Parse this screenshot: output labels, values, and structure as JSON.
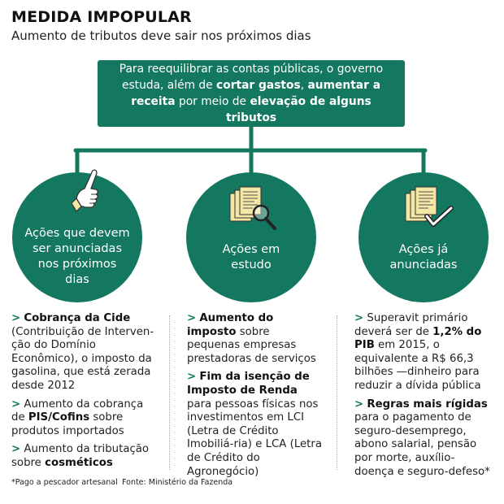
{
  "header": {
    "title": "MEDIDA IMPOPULAR",
    "subtitle": "Aumento de tributos deve sair nos próximos dias"
  },
  "intro": {
    "part1": "Para reequilibrar as contas públicas, o governo estuda, além de ",
    "bold1": "cortar gastos",
    "part2": ", ",
    "bold2": "aumentar a receita",
    "part3": " por meio de ",
    "bold3": "elevação de alguns tributos"
  },
  "circles": [
    {
      "label": "Ações que devem ser anunciadas nos próximos dias",
      "icon": "pointing-hand-icon"
    },
    {
      "label": "Ações em estudo",
      "icon": "documents-magnifier-icon"
    },
    {
      "label": "Ações já anunciadas",
      "icon": "documents-checkmark-icon"
    }
  ],
  "columns": {
    "left": [
      {
        "bold": "Cobrança da Cide",
        "text": " (Contribuição de Interven-ção do Domínio Econômico), o imposto da gasolina, que está zerada desde 2012"
      },
      {
        "pre": "Aumento da cobrança de ",
        "bold": "PIS/Cofins",
        "text": " sobre produtos importados"
      },
      {
        "pre": "Aumento da tributação sobre ",
        "bold": "cosméticos",
        "text": ""
      }
    ],
    "middle": [
      {
        "bold": "Aumento do imposto",
        "text": " sobre pequenas empresas prestadoras de serviços"
      },
      {
        "bold": "Fim da isenção de Imposto de Renda",
        "text": " para pessoas físicas nos investimentos em LCI (Letra de Crédito Imobiliá-ria) e LCA (Letra de Crédito do Agronegócio)"
      }
    ],
    "right": [
      {
        "pre": "Superavit primário deverá ser de ",
        "bold": "1,2% do PIB",
        "text": " em 2015, o equivalente a R$ 66,3 bilhões —dinheiro para reduzir a dívida pública"
      },
      {
        "bold": "Regras mais rígidas",
        "text": " para o pagamento de seguro-desemprego, abono salarial, pensão por morte, auxílio-doença e seguro-defeso*"
      }
    ]
  },
  "footer": {
    "note": "*Pago a pescador artesanal",
    "source": "Fonte: Ministério da Fazenda"
  },
  "colors": {
    "accent": "#14775f",
    "paper": "#f3e7a6"
  }
}
